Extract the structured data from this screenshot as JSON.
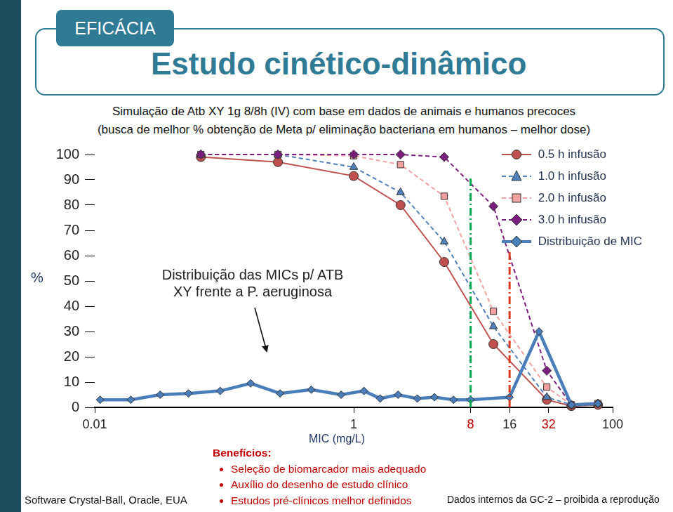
{
  "slide": {
    "tab": "EFICÁCIA",
    "title": "Estudo cinético-dinâmico",
    "subtitle_lines": [
      "Simulação de Atb XY 1g 8/8h (IV) com base em dados de animais e humanos precoces",
      "(busca de melhor % obtenção de Meta p/ eliminação bacteriana em humanos – melhor dose)"
    ],
    "benefits_title": "Benefícios:",
    "benefits": [
      "Seleção de biomarcador mais adequado",
      "Auxílio do desenho de estudo clínico",
      "Estudos pré-clínicos melhor definidos"
    ],
    "footer_left": "Software Crystal-Ball, Oracle, EUA",
    "footer_right": "Dados internos da GC-2 – proibida a reprodução"
  },
  "chart_data": {
    "type": "line",
    "x_label": "MIC (mg/L)",
    "y_label": "%",
    "log": "x",
    "xlim": [
      0.01,
      100
    ],
    "xticks": [
      0.01,
      1,
      {
        "value": 8,
        "label": "8",
        "color": "#c00000"
      },
      16,
      {
        "value": 32,
        "label": "32",
        "color": "#c00000"
      },
      100
    ],
    "ylim": [
      0,
      100
    ],
    "yticks": [
      0,
      10,
      20,
      30,
      40,
      50,
      60,
      70,
      80,
      90,
      100
    ],
    "grid": false,
    "legend": "top-right",
    "note": {
      "lines": [
        "Distribuição das MICs p/ ATB",
        "XY frente a P. aeruginosa"
      ]
    },
    "series": [
      {
        "name": "0.5 h infusão",
        "color": "#c0504d",
        "marker": "circle",
        "line_style": "solid",
        "x": [
          0.066,
          0.26,
          1,
          2.3,
          5,
          12,
          31,
          48,
          77
        ],
        "values": [
          99,
          97,
          91.5,
          80,
          57.5,
          25,
          3,
          0.5,
          1
        ]
      },
      {
        "name": "1.0 h infusão",
        "color": "#4f81bd",
        "marker": "triangle",
        "line_style": "dashed",
        "x": [
          0.066,
          0.26,
          1,
          2.3,
          5,
          12,
          31,
          48,
          77
        ],
        "values": [
          100,
          100,
          95,
          85,
          65.5,
          32,
          4,
          1,
          1.5
        ]
      },
      {
        "name": "2.0 h infusão",
        "color": "#f2a0a0",
        "marker": "square",
        "line_style": "dashed",
        "x": [
          0.066,
          0.26,
          1,
          2.3,
          5,
          12,
          31,
          48,
          77
        ],
        "values": [
          100,
          100,
          99.5,
          96,
          83.5,
          38,
          8,
          1,
          1.5
        ]
      },
      {
        "name": "3.0 h infusão",
        "color": "#7b1f7f",
        "marker": "diamond",
        "line_style": "dashed",
        "x": [
          0.066,
          0.26,
          1,
          2.3,
          5,
          12,
          31,
          48,
          77
        ],
        "values": [
          100,
          100,
          100,
          100,
          99,
          79.5,
          14.5,
          1,
          1.5
        ]
      },
      {
        "name": "Distribuição de MIC",
        "color": "#4a7ebb",
        "marker": "diamond",
        "line_style": "thick",
        "x": [
          0.011,
          0.019,
          0.032,
          0.053,
          0.093,
          0.16,
          0.27,
          0.47,
          0.8,
          1.2,
          1.6,
          2.2,
          3.1,
          4.2,
          5.9,
          8,
          16,
          27,
          48,
          77
        ],
        "values": [
          3,
          3,
          5,
          5.5,
          6.5,
          9.5,
          5.5,
          7,
          5,
          6.5,
          3.5,
          5,
          3.5,
          4,
          3,
          3,
          4,
          30,
          1,
          1.5
        ]
      }
    ],
    "annotations": [
      {
        "x": 8,
        "y_from": 0,
        "y_to": 90.5,
        "color": "#00a651",
        "line_style": "dashdot"
      },
      {
        "x": 16,
        "y_from": 0,
        "y_to": 62,
        "color": "#d9381e",
        "line_style": "dashdot"
      }
    ]
  }
}
